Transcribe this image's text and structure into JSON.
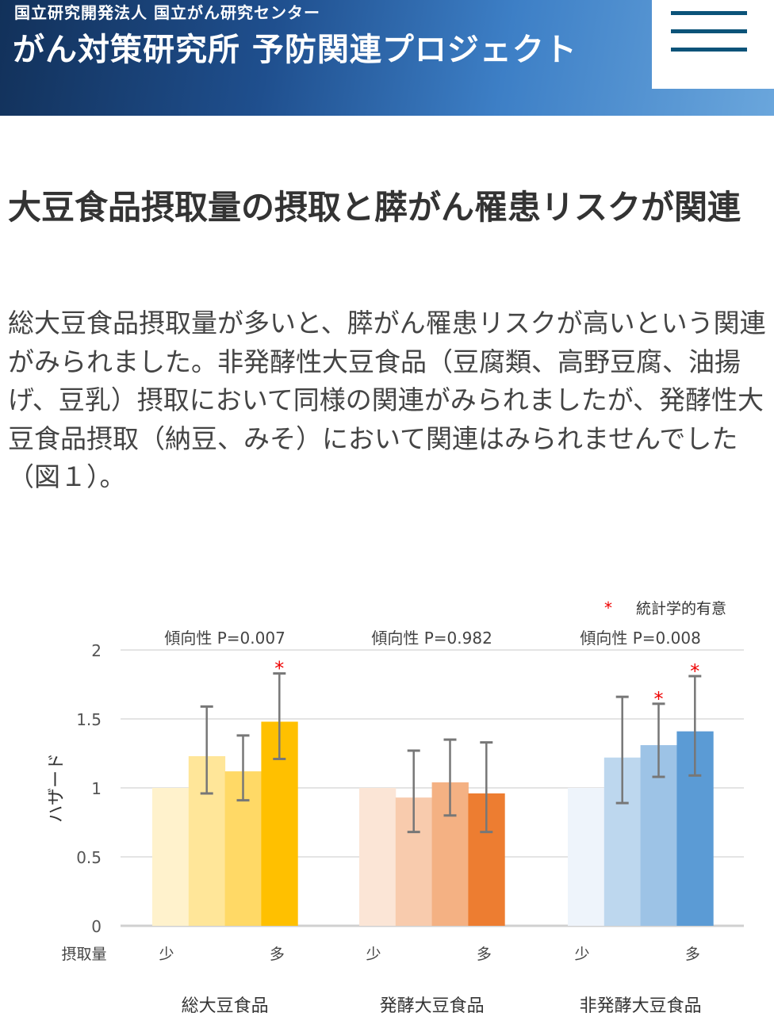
{
  "header": {
    "org": "国立研究開発法人 国立がん研究センター",
    "site_title": "がん対策研究所 予防関連プロジェクト",
    "menu_icon": "hamburger-icon"
  },
  "article": {
    "title": "大豆食品摂取量の摂取と膵がん罹患リスクが関連",
    "body": "総大豆食品摂取量が多いと、膵がん罹患リスクが高いという関連がみられました。非発酵性大豆食品（豆腐類、高野豆腐、油揚げ、豆乳）摂取において同様の関連がみられましたが、発酵性大豆食品摂取（納豆、みそ）において関連はみられませんでした（図１）。"
  },
  "chart_data": {
    "type": "bar",
    "ylabel": "ハザード",
    "xlabel_row": "摂取量",
    "ylim": [
      0,
      2
    ],
    "yticks": [
      "0",
      "0.5",
      "1",
      "1.5",
      "2"
    ],
    "legend": "＊統計学的有意",
    "low_label": "少",
    "high_label": "多",
    "groups": [
      {
        "name": "総大豆食品",
        "trend": "傾向性 P=0.007",
        "colors": [
          "#fff2cc",
          "#ffe699",
          "#ffd966",
          "#ffc000"
        ],
        "values": [
          1,
          1.23,
          1.12,
          1.48
        ],
        "ci_low": [
          null,
          0.96,
          0.91,
          1.21
        ],
        "ci_high": [
          null,
          1.59,
          1.38,
          1.83
        ],
        "significant": [
          false,
          false,
          false,
          true
        ]
      },
      {
        "name": "発酵大豆食品",
        "trend": "傾向性 P=0.982",
        "colors": [
          "#fbe5d6",
          "#f8cbad",
          "#f4b183",
          "#ed7d31"
        ],
        "values": [
          1,
          0.93,
          1.04,
          0.96
        ],
        "ci_low": [
          null,
          0.68,
          0.8,
          0.68
        ],
        "ci_high": [
          null,
          1.27,
          1.35,
          1.33
        ],
        "significant": [
          false,
          false,
          false,
          false
        ]
      },
      {
        "name": "非発酵大豆食品",
        "trend": "傾向性 P=0.008",
        "colors": [
          "#eef4fb",
          "#bdd7ee",
          "#9dc3e6",
          "#5b9bd5"
        ],
        "values": [
          1,
          1.22,
          1.31,
          1.41
        ],
        "ci_low": [
          null,
          0.89,
          1.08,
          1.09
        ],
        "ci_high": [
          null,
          1.66,
          1.61,
          1.81
        ],
        "significant": [
          false,
          false,
          true,
          true
        ]
      }
    ]
  }
}
